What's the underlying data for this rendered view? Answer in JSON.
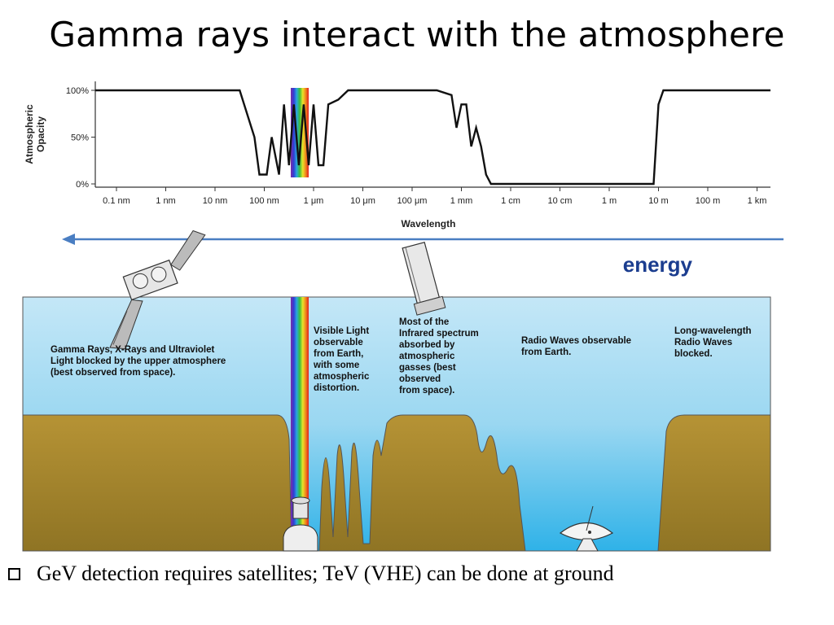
{
  "title": "Gamma rays interact with the atmosphere",
  "chart_data": {
    "type": "line",
    "ylabel": "Atmospheric Opacity",
    "xlabel": "Wavelength",
    "y_ticks": [
      "100%",
      "50%",
      "0%"
    ],
    "x_ticks": [
      "0.1 nm",
      "1 nm",
      "10 nm",
      "100 nm",
      "1 μm",
      "10 μm",
      "100 μm",
      "1 mm",
      "1 cm",
      "10 cm",
      "1 m",
      "10 m",
      "100 m",
      "1 km"
    ],
    "ylim": [
      0,
      100
    ],
    "x_log_range_m": [
      1e-10,
      1000.0
    ],
    "series": [
      {
        "x_log10_m": [
          -11,
          -7.5,
          -7.2,
          -7.1,
          -6.95,
          -6.85,
          -6.7,
          -6.6,
          -6.5,
          -6.4,
          -6.3,
          -6.2,
          -6.1,
          -6.0,
          -5.9,
          -5.8,
          -5.7,
          -5.5,
          -5.3,
          -5.0,
          -4.5,
          -4.0,
          -3.5,
          -3.2,
          -3.1,
          -3.0,
          -2.9,
          -2.8,
          -2.7,
          -2.6,
          -2.5,
          -2.4,
          -2.2,
          -2.0,
          -1.5,
          -1.0,
          0.0,
          0.9,
          1.0,
          1.1,
          1.2,
          2.0,
          3.5
        ],
        "opacity": [
          100,
          100,
          50,
          10,
          10,
          50,
          10,
          85,
          20,
          85,
          20,
          85,
          20,
          85,
          20,
          20,
          85,
          90,
          100,
          100,
          100,
          100,
          100,
          95,
          60,
          85,
          85,
          40,
          60,
          40,
          10,
          0,
          0,
          0,
          0,
          0,
          0,
          0,
          85,
          100,
          100,
          100,
          100
        ]
      }
    ]
  },
  "diagram": {
    "energy_label": "energy",
    "notes": {
      "gamma": [
        "Gamma Rays, X-Rays and Ultraviolet",
        "Light blocked by the upper atmosphere",
        "(best observed from space)."
      ],
      "visible": [
        "Visible Light",
        "observable",
        "from Earth,",
        "with some",
        "atmospheric",
        "distortion."
      ],
      "infrared": [
        "Most of the",
        "Infrared spectrum",
        "absorbed by",
        "atmospheric",
        "gasses (best",
        "observed",
        "from space)."
      ],
      "radio": [
        "Radio Waves observable",
        "from Earth."
      ],
      "long": [
        "Long-wavelength",
        "Radio Waves",
        "blocked."
      ]
    },
    "colors": {
      "sky": "#8fd3f0",
      "ground": "#a98a35",
      "arrow": "#4a7ec2",
      "energy": "#1b3d8f"
    }
  },
  "bullet": "GeV  detection requires satellites; TeV (VHE) can be done at ground"
}
